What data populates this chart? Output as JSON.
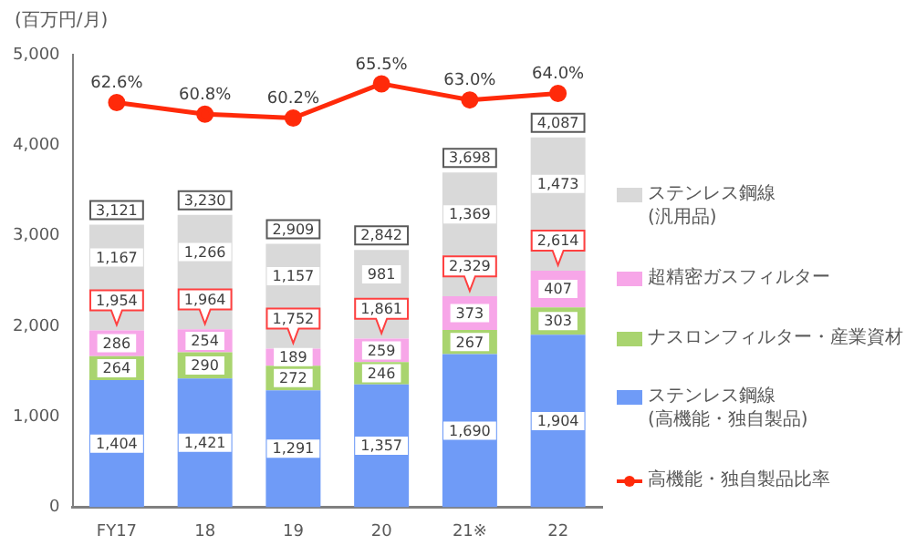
{
  "chart_data": {
    "type": "bar",
    "stacked": true,
    "ylabel": "(百万円/月)",
    "categories": [
      "FY17",
      "18",
      "19",
      "20",
      "21※",
      "22"
    ],
    "series": [
      {
        "name": "ステンレス鋼線\n(高機能・独自製品)",
        "color": "#6f9bf7",
        "values": [
          1404,
          1421,
          1291,
          1357,
          1690,
          1904
        ],
        "value_labels": [
          "1,404",
          "1,421",
          "1,291",
          "1,357",
          "1,690",
          "1,904"
        ]
      },
      {
        "name": "ナスロンフィルター・産業資材",
        "color": "#a9d46f",
        "values": [
          264,
          290,
          272,
          246,
          267,
          303
        ],
        "value_labels": [
          "264",
          "290",
          "272",
          "246",
          "267",
          "303"
        ]
      },
      {
        "name": "超精密ガスフィルター",
        "color": "#f7a6e8",
        "values": [
          286,
          254,
          189,
          259,
          373,
          407
        ],
        "value_labels": [
          "286",
          "254",
          "189",
          "259",
          "373",
          "407"
        ]
      },
      {
        "name": "ステンレス鋼線\n(汎用品)",
        "color": "#d9d9d9",
        "values": [
          1167,
          1266,
          1157,
          981,
          1369,
          1473
        ],
        "value_labels": [
          "1,167",
          "1,266",
          "1,157",
          "981",
          "1,369",
          "1,473"
        ]
      },
      {
        "name": "高機能・独自製品比率",
        "color": "#ff2a0a",
        "type": "line",
        "axis": "y2",
        "marker": "circle",
        "values": [
          62.6,
          60.8,
          60.2,
          65.5,
          63.0,
          64.0
        ],
        "value_labels": [
          "62.6%",
          "60.8%",
          "60.2%",
          "65.5%",
          "63.0%",
          "64.0%"
        ]
      }
    ],
    "totals": [
      "3,121",
      "3,230",
      "2,909",
      "2,842",
      "3,698",
      "4,087"
    ],
    "annotations": [
      {
        "text": "1,954",
        "x": "FY17",
        "y": 1954
      },
      {
        "text": "1,964",
        "x": "18",
        "y": 1964
      },
      {
        "text": "1,752",
        "x": "19",
        "y": 1752
      },
      {
        "text": "1,861",
        "x": "20",
        "y": 1861
      },
      {
        "text": "2,329",
        "x": "21※",
        "y": 2329
      },
      {
        "text": "2,614",
        "x": "22",
        "y": 2614
      }
    ],
    "ylim": [
      0,
      5000
    ],
    "yticks": [
      0,
      {
        "value": 1000,
        "label": "1,000"
      },
      {
        "value": 2000,
        "label": "2,000"
      },
      {
        "value": 3000,
        "label": "3,000"
      },
      {
        "value": 4000,
        "label": "4,000"
      },
      {
        "value": 5000,
        "label": "5,000"
      }
    ],
    "y2lim": [
      0,
      70
    ],
    "grid": false,
    "legend": "right"
  }
}
